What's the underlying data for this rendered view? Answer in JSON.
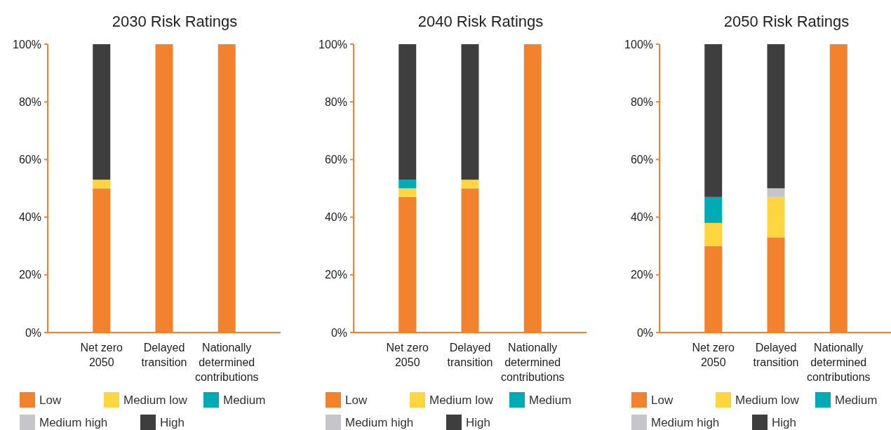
{
  "chart_data": [
    {
      "type": "bar",
      "stacked": true,
      "title": "2030 Risk Ratings",
      "categories": [
        "Net zero 2050",
        "Delayed transition",
        "Nationally determined contributions"
      ],
      "ylim": [
        0,
        100
      ],
      "yticks": [
        {
          "value": 0,
          "label": "0%"
        },
        {
          "value": 20,
          "label": "20%"
        },
        {
          "value": 40,
          "label": "40%"
        },
        {
          "value": 60,
          "label": "60%"
        },
        {
          "value": 80,
          "label": "80%"
        },
        {
          "value": 100,
          "label": "100%"
        }
      ],
      "grid": false,
      "legend": "bottom",
      "series": [
        {
          "name": "Low",
          "color": "#f3822f",
          "values": [
            50,
            100,
            100
          ]
        },
        {
          "name": "Medium low",
          "color": "#fed641",
          "values": [
            3,
            0,
            0
          ]
        },
        {
          "name": "Medium",
          "color": "#00abb6",
          "values": [
            0,
            0,
            0
          ]
        },
        {
          "name": "Medium high",
          "color": "#c6c6ca",
          "values": [
            0,
            0,
            0
          ]
        },
        {
          "name": "High",
          "color": "#3e3e3e",
          "values": [
            47,
            0,
            0
          ]
        }
      ]
    },
    {
      "type": "bar",
      "stacked": true,
      "title": "2040 Risk Ratings",
      "categories": [
        "Net zero 2050",
        "Delayed transition",
        "Nationally determined contributions"
      ],
      "ylim": [
        0,
        100
      ],
      "yticks": [
        {
          "value": 0,
          "label": "0%"
        },
        {
          "value": 20,
          "label": "20%"
        },
        {
          "value": 40,
          "label": "40%"
        },
        {
          "value": 60,
          "label": "60%"
        },
        {
          "value": 80,
          "label": "80%"
        },
        {
          "value": 100,
          "label": "100%"
        }
      ],
      "grid": false,
      "legend": "bottom",
      "series": [
        {
          "name": "Low",
          "color": "#f3822f",
          "values": [
            47,
            50,
            100
          ]
        },
        {
          "name": "Medium low",
          "color": "#fed641",
          "values": [
            3,
            3,
            0
          ]
        },
        {
          "name": "Medium",
          "color": "#00abb6",
          "values": [
            3,
            0,
            0
          ]
        },
        {
          "name": "Medium high",
          "color": "#c6c6ca",
          "values": [
            0,
            0,
            0
          ]
        },
        {
          "name": "High",
          "color": "#3e3e3e",
          "values": [
            47,
            47,
            0
          ]
        }
      ]
    },
    {
      "type": "bar",
      "stacked": true,
      "title": "2050 Risk Ratings",
      "categories": [
        "Net zero 2050",
        "Delayed transition",
        "Nationally determined contributions"
      ],
      "ylim": [
        0,
        100
      ],
      "yticks": [
        {
          "value": 0,
          "label": "0%"
        },
        {
          "value": 20,
          "label": "20%"
        },
        {
          "value": 40,
          "label": "40%"
        },
        {
          "value": 60,
          "label": "60%"
        },
        {
          "value": 80,
          "label": "80%"
        },
        {
          "value": 100,
          "label": "100%"
        }
      ],
      "grid": false,
      "legend": "bottom",
      "series": [
        {
          "name": "Low",
          "color": "#f3822f",
          "values": [
            30,
            33,
            100
          ]
        },
        {
          "name": "Medium low",
          "color": "#fed641",
          "values": [
            8,
            14,
            0
          ]
        },
        {
          "name": "Medium",
          "color": "#00abb6",
          "values": [
            9,
            0,
            0
          ]
        },
        {
          "name": "Medium high",
          "color": "#c6c6ca",
          "values": [
            0,
            3,
            0
          ]
        },
        {
          "name": "High",
          "color": "#3e3e3e",
          "values": [
            53,
            50,
            0
          ]
        }
      ]
    }
  ]
}
